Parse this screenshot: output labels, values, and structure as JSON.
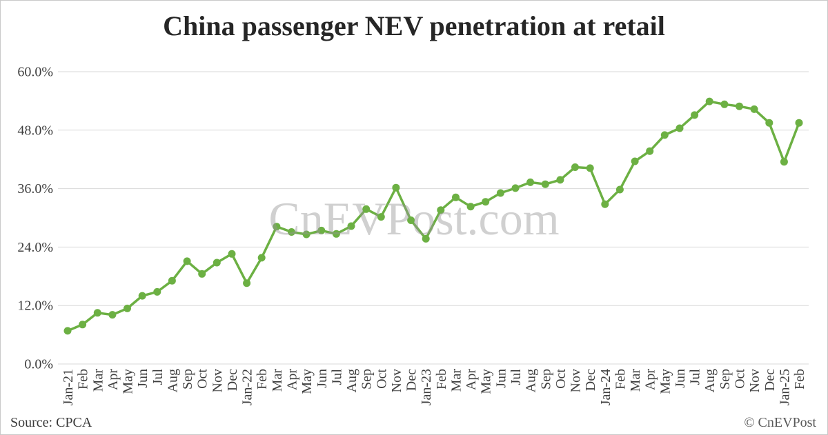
{
  "title": "China passenger NEV penetration at retail",
  "watermark": "CnEVPost.com",
  "footer": {
    "source": "Source: CPCA",
    "credit": "© CnEVPost"
  },
  "colors": {
    "line": "#6CB043",
    "grid": "#d9d9d9",
    "axis_text": "#3f3f3f",
    "title_text": "#262626"
  },
  "chart_data": {
    "type": "line",
    "title": "China passenger NEV penetration at retail",
    "series_name": "NEV penetration at retail (%)",
    "unit": "%",
    "legend": "none",
    "grid": "horizontal gridlines only",
    "ylim": [
      0,
      60
    ],
    "y_ticks": [
      "0.0%",
      "12.0%",
      "24.0%",
      "36.0%",
      "48.0%",
      "60.0%"
    ],
    "y_tick_values": [
      0,
      12,
      24,
      36,
      48,
      60
    ],
    "x_labels": [
      "Jan-21",
      "Feb",
      "Mar",
      "Apr",
      "May",
      "Jun",
      "Jul",
      "Aug",
      "Sep",
      "Oct",
      "Nov",
      "Dec",
      "Jan-22",
      "Feb",
      "Mar",
      "Apr",
      "May",
      "Jun",
      "Jul",
      "Aug",
      "Sep",
      "Oct",
      "Nov",
      "Dec",
      "Jan-23",
      "Feb",
      "Mar",
      "Apr",
      "May",
      "Jun",
      "Jul",
      "Aug",
      "Sep",
      "Oct",
      "Nov",
      "Dec",
      "Jan-24",
      "Feb",
      "Mar",
      "Apr",
      "May",
      "Jun",
      "Jul",
      "Aug",
      "Sep",
      "Oct",
      "Nov",
      "Dec",
      "Jan-25",
      "Feb"
    ],
    "values": [
      6.8,
      8.1,
      10.5,
      10.1,
      11.4,
      14.0,
      14.8,
      17.1,
      21.1,
      18.5,
      20.8,
      22.6,
      16.6,
      21.8,
      28.2,
      27.1,
      26.6,
      27.4,
      26.7,
      28.3,
      31.8,
      30.2,
      36.2,
      29.5,
      25.7,
      31.6,
      34.2,
      32.3,
      33.3,
      35.1,
      36.1,
      37.3,
      36.9,
      37.8,
      40.4,
      40.2,
      32.8,
      35.8,
      41.6,
      43.7,
      47.0,
      48.4,
      51.1,
      53.9,
      53.3,
      52.9,
      52.3,
      49.5,
      41.5,
      49.5
    ]
  }
}
